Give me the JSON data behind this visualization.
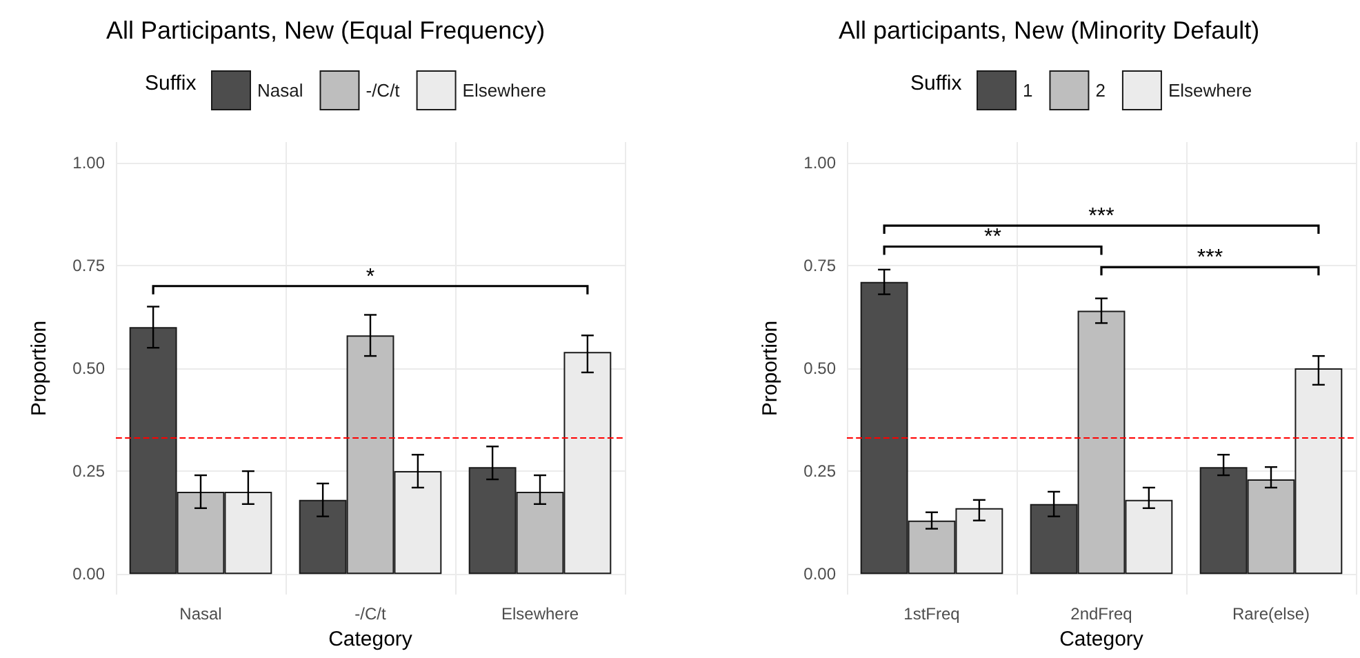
{
  "chart_data": [
    {
      "type": "bar",
      "title": "All Participants, New (Equal Frequency)",
      "xlabel": "Category",
      "ylabel": "Proportion",
      "legend_title": "Suffix",
      "categories": [
        "Nasal",
        "-/C/t",
        "Elsewhere"
      ],
      "series": [
        {
          "name": "Nasal",
          "color": "#4d4d4d",
          "values": [
            0.6,
            0.18,
            0.26
          ],
          "errors": [
            [
              0.55,
              0.65
            ],
            [
              0.14,
              0.22
            ],
            [
              0.23,
              0.31
            ]
          ]
        },
        {
          "name": "-/C/t",
          "color": "#bebebe",
          "values": [
            0.2,
            0.58,
            0.2
          ],
          "errors": [
            [
              0.16,
              0.24
            ],
            [
              0.53,
              0.63
            ],
            [
              0.17,
              0.24
            ]
          ]
        },
        {
          "name": "Elsewhere",
          "color": "#ebebeb",
          "values": [
            0.2,
            0.25,
            0.54
          ],
          "errors": [
            [
              0.17,
              0.25
            ],
            [
              0.21,
              0.29
            ],
            [
              0.49,
              0.58
            ]
          ]
        }
      ],
      "ylim": [
        -0.05,
        1.05
      ],
      "yticks": [
        {
          "value": 0,
          "label": "0.00"
        },
        {
          "value": 0.25,
          "label": "0.25"
        },
        {
          "value": 0.5,
          "label": "0.50"
        },
        {
          "value": 0.75,
          "label": "0.75"
        },
        {
          "value": 1,
          "label": "1.00"
        }
      ],
      "ref_lines": [
        {
          "axis": "y",
          "value": 0.333,
          "color": "#ff0000",
          "line_style": "dashed"
        }
      ],
      "annotations": [
        "*"
      ],
      "grid": true,
      "legend": "top"
    },
    {
      "type": "bar",
      "title": "All participants, New (Minority Default)",
      "xlabel": "Category",
      "ylabel": "Proportion",
      "legend_title": "Suffix",
      "categories": [
        "1stFreq",
        "2ndFreq",
        "Rare(else)"
      ],
      "series": [
        {
          "name": "1",
          "color": "#4d4d4d",
          "values": [
            0.71,
            0.17,
            0.26
          ],
          "errors": [
            [
              0.68,
              0.74
            ],
            [
              0.14,
              0.2
            ],
            [
              0.24,
              0.29
            ]
          ]
        },
        {
          "name": "2",
          "color": "#bebebe",
          "values": [
            0.13,
            0.64,
            0.23
          ],
          "errors": [
            [
              0.11,
              0.15
            ],
            [
              0.61,
              0.67
            ],
            [
              0.21,
              0.26
            ]
          ]
        },
        {
          "name": "Elsewhere",
          "color": "#ebebeb",
          "values": [
            0.16,
            0.18,
            0.5
          ],
          "errors": [
            [
              0.13,
              0.18
            ],
            [
              0.16,
              0.21
            ],
            [
              0.46,
              0.53
            ]
          ]
        }
      ],
      "ylim": [
        -0.05,
        1.05
      ],
      "yticks": [
        {
          "value": 0,
          "label": "0.00"
        },
        {
          "value": 0.25,
          "label": "0.25"
        },
        {
          "value": 0.5,
          "label": "0.50"
        },
        {
          "value": 0.75,
          "label": "0.75"
        },
        {
          "value": 1,
          "label": "1.00"
        }
      ],
      "ref_lines": [
        {
          "axis": "y",
          "value": 0.333,
          "color": "#ff0000",
          "line_style": "dashed"
        }
      ],
      "annotations": [
        "**",
        "***",
        "***"
      ],
      "grid": true,
      "legend": "top"
    }
  ]
}
